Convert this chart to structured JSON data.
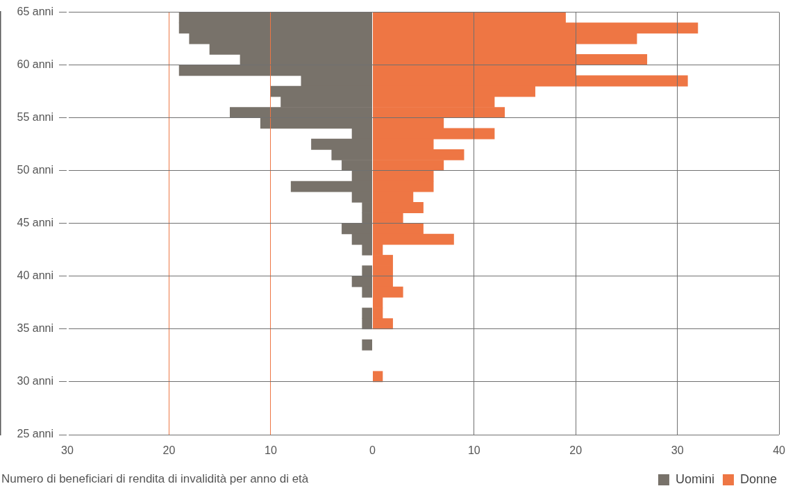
{
  "chart_data": {
    "type": "bar",
    "orientation": "horizontal",
    "xlabel": "Numero di beneficiari di rendita di invalidità per anno di età",
    "x": [
      64.5,
      63.5,
      62.5,
      61.5,
      60.5,
      59.5,
      58.5,
      57.5,
      56.5,
      55.5,
      54.5,
      53.5,
      52.5,
      51.5,
      50.5,
      49.5,
      48.5,
      47.5,
      46.5,
      45.5,
      44.5,
      43.5,
      42.5,
      41.5,
      40.5,
      39.5,
      38.5,
      37.5,
      36.5,
      35.5,
      34.5,
      33.5,
      32.5,
      31.5,
      30.5
    ],
    "series": [
      {
        "name": "Uomini",
        "color": "#78726a",
        "values": [
          -19,
          -19,
          -18,
          -16,
          -13,
          -19,
          -7,
          -10,
          -9,
          -14,
          -11,
          -2,
          -6,
          -4,
          -3,
          -2,
          -8,
          -2,
          -1,
          -1,
          -3,
          -2,
          -1,
          null,
          -1,
          -2,
          -1,
          null,
          -1,
          -1,
          null,
          -1,
          null,
          null,
          null
        ]
      },
      {
        "name": "Donne",
        "color": "#ee7644",
        "values": [
          19,
          32,
          26,
          20,
          27,
          20,
          31,
          16,
          12,
          13,
          7,
          12,
          6,
          9,
          7,
          6,
          6,
          4,
          5,
          3,
          5,
          8,
          1,
          2,
          2,
          2,
          3,
          1,
          1,
          2,
          null,
          null,
          null,
          null,
          1
        ]
      }
    ],
    "xlim": [
      -30,
      40
    ],
    "xticks": [
      {
        "value": -30,
        "label": "30"
      },
      {
        "value": -20,
        "label": "20"
      },
      {
        "value": -10,
        "label": "10"
      },
      0,
      10,
      20,
      30,
      40
    ],
    "ylim": [
      25,
      65
    ],
    "yticks": [
      {
        "value": 25,
        "label": "25 anni"
      },
      {
        "value": 30,
        "label": "30 anni"
      },
      {
        "value": 35,
        "label": "35 anni"
      },
      {
        "value": 40,
        "label": "40 anni"
      },
      {
        "value": 45,
        "label": "45 anni"
      },
      {
        "value": 50,
        "label": "50 anni"
      },
      {
        "value": 55,
        "label": "55 anni"
      },
      {
        "value": 60,
        "label": "60 anni"
      },
      {
        "value": 65,
        "label": "65 anni"
      }
    ],
    "grid": true,
    "stacked": true,
    "legend": "bottom right"
  }
}
